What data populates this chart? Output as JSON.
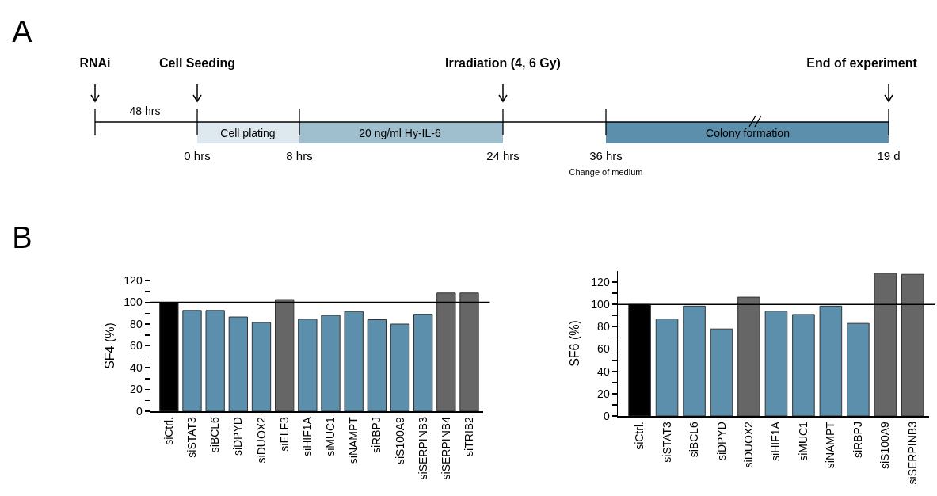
{
  "chart_data": [
    {
      "type": "other",
      "annotations": [
        "A",
        "RNAi",
        "Cell Seeding",
        "Irradiation (4, 6 Gy)",
        "End of experiment",
        "48 hrs",
        "Cell plating",
        "20 ng/ml Hy-IL-6",
        "Colony formation",
        "0 hrs",
        "8 hrs",
        "24 hrs",
        "36 hrs",
        "Change of medium",
        "19 d"
      ]
    },
    {
      "type": "bar",
      "annotations": [
        "B"
      ],
      "ylabel": "SF4 (%)",
      "categories": [
        "siCtrl.",
        "siSTAT3",
        "siBCL6",
        "siDPYD",
        "siDUOX2",
        "siELF3",
        "siHIF1A",
        "siMUC1",
        "siNAMPT",
        "siRBPJ",
        "siS100A9",
        "siSERPINB3",
        "siSERPINB4",
        "siTRIB2"
      ],
      "values": [
        100,
        92.5,
        92.5,
        86.5,
        81.5,
        102.5,
        84.5,
        88,
        91.5,
        84,
        80,
        89,
        108.5,
        108.5
      ],
      "colors": [
        "#000000",
        "#5b8fab",
        "#5b8fab",
        "#5b8fab",
        "#5b8fab",
        "#666666",
        "#5b8fab",
        "#5b8fab",
        "#5b8fab",
        "#5b8fab",
        "#5b8fab",
        "#5b8fab",
        "#666666",
        "#666666"
      ],
      "ylim": [
        0,
        120
      ],
      "yticks": [
        0,
        {
          "value": 10,
          "label": null
        },
        20,
        {
          "value": 30,
          "label": null
        },
        40,
        {
          "value": 50,
          "label": null
        },
        60,
        {
          "value": 70,
          "label": null
        },
        80,
        {
          "value": 90,
          "label": null
        },
        100,
        {
          "value": 110,
          "label": null
        },
        120
      ],
      "ref_lines": [
        {
          "axis": "y",
          "value": 100,
          "color": "#000000"
        }
      ]
    },
    {
      "type": "bar",
      "ylabel": "SF6 (%)",
      "categories": [
        "siCtrl.",
        "siSTAT3",
        "siBCL6",
        "siDPYD",
        "siDUOX2",
        "siHIF1A",
        "siMUC1",
        "siNAMPT",
        "siRBPJ",
        "siS100A9",
        "siSERPINB3"
      ],
      "values": [
        100,
        87,
        98.5,
        78,
        106.5,
        94,
        91,
        98.5,
        83,
        128,
        127
      ],
      "colors": [
        "#000000",
        "#5b8fab",
        "#5b8fab",
        "#5b8fab",
        "#666666",
        "#5b8fab",
        "#5b8fab",
        "#5b8fab",
        "#5b8fab",
        "#666666",
        "#666666"
      ],
      "ylim": [
        0,
        130
      ],
      "yticks": [
        0,
        {
          "value": 10,
          "label": null
        },
        20,
        {
          "value": 30,
          "label": null
        },
        40,
        {
          "value": 50,
          "label": null
        },
        60,
        {
          "value": 70,
          "label": null
        },
        80,
        {
          "value": 90,
          "label": null
        },
        100,
        {
          "value": 110,
          "label": null
        },
        120
      ],
      "ref_lines": [
        {
          "axis": "y",
          "value": 100,
          "color": "#000000"
        }
      ]
    }
  ]
}
